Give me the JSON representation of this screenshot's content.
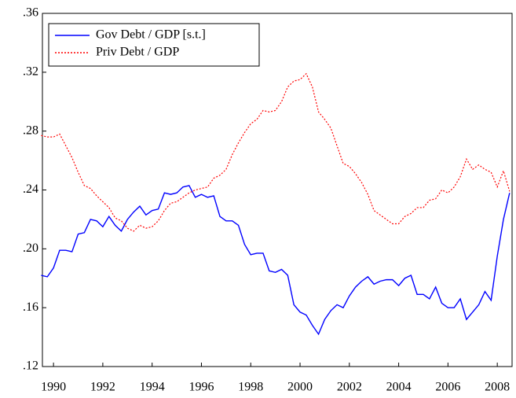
{
  "chart_data": {
    "type": "line",
    "x": [
      1989.5,
      1989.75,
      1990,
      1990.25,
      1990.5,
      1990.75,
      1991,
      1991.25,
      1991.5,
      1991.75,
      1992,
      1992.25,
      1992.5,
      1992.75,
      1993,
      1993.25,
      1993.5,
      1993.75,
      1994,
      1994.25,
      1994.5,
      1994.75,
      1995,
      1995.25,
      1995.5,
      1995.75,
      1996,
      1996.25,
      1996.5,
      1996.75,
      1997,
      1997.25,
      1997.5,
      1997.75,
      1998,
      1998.25,
      1998.5,
      1998.75,
      1999,
      1999.25,
      1999.5,
      1999.75,
      2000,
      2000.25,
      2000.5,
      2000.75,
      2001,
      2001.25,
      2001.5,
      2001.75,
      2002,
      2002.25,
      2002.5,
      2002.75,
      2003,
      2003.25,
      2003.5,
      2003.75,
      2004,
      2004.25,
      2004.5,
      2004.75,
      2005,
      2005.25,
      2005.5,
      2005.75,
      2006,
      2006.25,
      2006.5,
      2006.75,
      2007,
      2007.25,
      2007.5,
      2007.75,
      2008,
      2008.25,
      2008.5
    ],
    "series": [
      {
        "name": "Gov Debt / GDP [s.t.]",
        "color": "#0000ff",
        "dash": "solid",
        "values": [
          0.182,
          0.181,
          0.187,
          0.199,
          0.199,
          0.198,
          0.21,
          0.211,
          0.22,
          0.219,
          0.215,
          0.222,
          0.216,
          0.212,
          0.22,
          0.225,
          0.229,
          0.223,
          0.226,
          0.227,
          0.238,
          0.237,
          0.238,
          0.242,
          0.243,
          0.235,
          0.237,
          0.235,
          0.236,
          0.222,
          0.219,
          0.219,
          0.216,
          0.203,
          0.196,
          0.197,
          0.197,
          0.185,
          0.184,
          0.186,
          0.182,
          0.162,
          0.157,
          0.155,
          0.148,
          0.142,
          0.152,
          0.158,
          0.162,
          0.16,
          0.168,
          0.174,
          0.178,
          0.181,
          0.176,
          0.178,
          0.179,
          0.179,
          0.175,
          0.18,
          0.182,
          0.169,
          0.169,
          0.166,
          0.174,
          0.163,
          0.16,
          0.16,
          0.166,
          0.152,
          0.157,
          0.162,
          0.171,
          0.165,
          0.195,
          0.22,
          0.238
        ]
      },
      {
        "name": "Priv Debt / GDP",
        "color": "#ff0000",
        "dash": "dotted",
        "values": [
          0.277,
          0.276,
          0.276,
          0.278,
          0.27,
          0.262,
          0.252,
          0.243,
          0.241,
          0.236,
          0.232,
          0.228,
          0.221,
          0.219,
          0.214,
          0.212,
          0.216,
          0.214,
          0.215,
          0.219,
          0.226,
          0.231,
          0.232,
          0.235,
          0.238,
          0.24,
          0.241,
          0.242,
          0.248,
          0.25,
          0.254,
          0.264,
          0.272,
          0.279,
          0.285,
          0.288,
          0.294,
          0.293,
          0.294,
          0.3,
          0.31,
          0.314,
          0.315,
          0.319,
          0.31,
          0.293,
          0.288,
          0.282,
          0.27,
          0.258,
          0.256,
          0.251,
          0.245,
          0.237,
          0.226,
          0.223,
          0.22,
          0.217,
          0.217,
          0.222,
          0.224,
          0.228,
          0.228,
          0.233,
          0.234,
          0.24,
          0.238,
          0.242,
          0.249,
          0.261,
          0.254,
          0.257,
          0.254,
          0.252,
          0.242,
          0.253,
          0.239
        ]
      }
    ],
    "xlim": [
      1989.55,
      2008.6
    ],
    "xticks": [
      1990,
      1992,
      1994,
      1996,
      1998,
      2000,
      2002,
      2004,
      2006,
      2008
    ],
    "ylim": [
      0.12,
      0.36
    ],
    "yticks": [
      {
        "value": 0.12,
        "label": ".12"
      },
      {
        "value": 0.16,
        "label": ".16"
      },
      {
        "value": 0.2,
        "label": ".20"
      },
      {
        "value": 0.24,
        "label": ".24"
      },
      {
        "value": 0.28,
        "label": ".28"
      },
      {
        "value": 0.32,
        "label": ".32"
      },
      {
        "value": 0.36,
        "label": ".36"
      }
    ],
    "legend": "top-left"
  }
}
